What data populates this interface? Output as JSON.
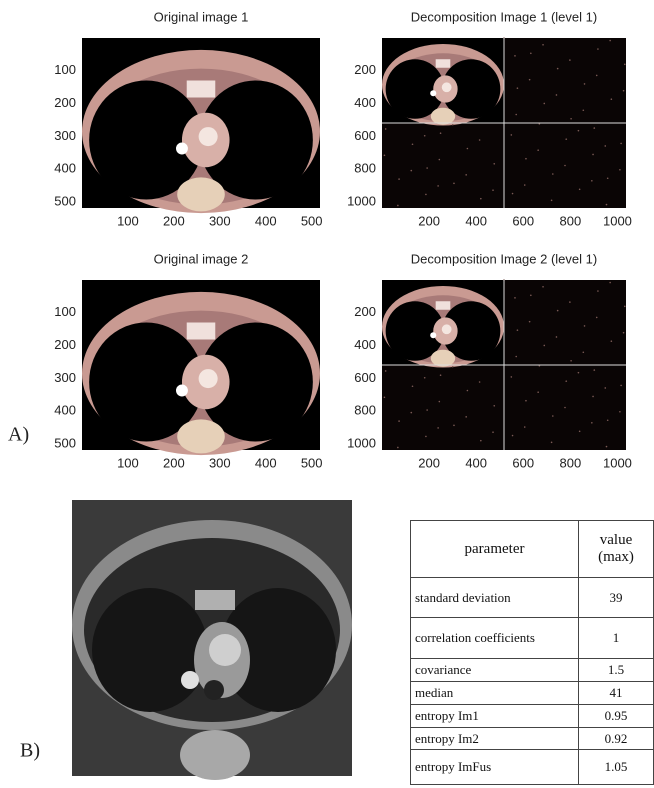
{
  "panels": [
    {
      "title": "Original image 1",
      "yticks": [
        100,
        200,
        300,
        400,
        500
      ],
      "xticks": [
        100,
        200,
        300,
        400,
        500
      ]
    },
    {
      "title": "Decomposition Image 1 (level 1)",
      "yticks": [
        200,
        400,
        600,
        800,
        1000
      ],
      "xticks": [
        200,
        400,
        600,
        800,
        1000
      ]
    },
    {
      "title": "Original image 2",
      "yticks": [
        100,
        200,
        300,
        400,
        500
      ],
      "xticks": [
        100,
        200,
        300,
        400,
        500
      ]
    },
    {
      "title": "Decomposition Image 2 (level 1)",
      "yticks": [
        200,
        400,
        600,
        800,
        1000
      ],
      "xticks": [
        200,
        400,
        600,
        800,
        1000
      ]
    }
  ],
  "labels": {
    "a": "A)",
    "b": "B)"
  },
  "table": {
    "header": [
      "parameter",
      "value (max)"
    ],
    "rows": [
      [
        "standard deviation",
        39
      ],
      [
        "correlation coefficients",
        1
      ],
      [
        "covariance",
        1.5
      ],
      [
        "median",
        41
      ],
      [
        "entropy Im1",
        0.95
      ],
      [
        "entropy Im2",
        0.92
      ],
      [
        "entropy ImFus",
        1.05
      ]
    ]
  }
}
